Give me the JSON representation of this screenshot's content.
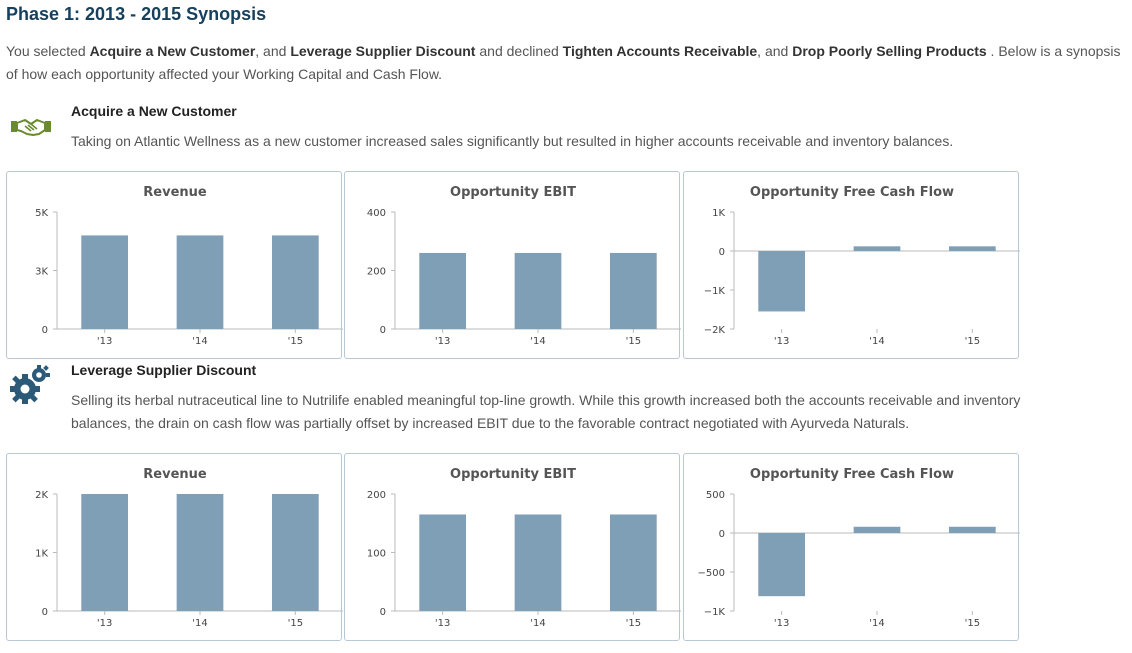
{
  "page": {
    "title": "Phase 1: 2013 - 2015 Synopsis",
    "intro": {
      "t1": "You selected ",
      "b1": "Acquire a New Customer",
      "t2": ", and ",
      "b2": "Leverage Supplier Discount",
      "t3": " and declined ",
      "b3": "Tighten Accounts Receivable",
      "t4": ", and ",
      "b4": "Drop Poorly Selling Products",
      "t5": " . Below is a synopsis of how each opportunity affected your Working Capital and Cash Flow."
    }
  },
  "colors": {
    "bar": "#7f9fb6",
    "title": "#17405d",
    "handshake_icon": "#6a8a30",
    "gear_icon": "#2b5a78"
  },
  "opportunities": [
    {
      "icon": "handshake-icon",
      "title": "Acquire a New Customer",
      "description": "Taking on Atlantic Wellness as a new customer increased sales significantly but resulted in higher accounts receivable and inventory balances."
    },
    {
      "icon": "gear-icon",
      "title": "Leverage Supplier Discount",
      "description": "Selling its herbal nutraceutical line to Nutrilife enabled meaningful top-line growth. While this growth increased both the accounts receivable and inventory balances, the drain on cash flow was partially offset by increased EBIT due to the favorable contract negotiated with Ayurveda Naturals."
    }
  ],
  "chart_data": [
    {
      "type": "bar",
      "title": "Revenue",
      "categories": [
        "'13",
        "'14",
        "'15"
      ],
      "values": [
        4000,
        4000,
        4000
      ],
      "ylim": [
        0,
        5000
      ],
      "yticks": [
        0,
        2500,
        5000
      ],
      "ytick_labels": [
        "0",
        "3K",
        "5K"
      ]
    },
    {
      "type": "bar",
      "title": "Opportunity EBIT",
      "categories": [
        "'13",
        "'14",
        "'15"
      ],
      "values": [
        260,
        260,
        260
      ],
      "ylim": [
        0,
        400
      ],
      "yticks": [
        0,
        200,
        400
      ],
      "ytick_labels": [
        "0",
        "200",
        "400"
      ]
    },
    {
      "type": "bar",
      "title": "Opportunity Free Cash Flow",
      "categories": [
        "'13",
        "'14",
        "'15"
      ],
      "values": [
        -1550,
        120,
        120
      ],
      "ylim": [
        -2000,
        1000
      ],
      "yticks": [
        -2000,
        -1000,
        0,
        1000
      ],
      "ytick_labels": [
        "−2K",
        "−1K",
        "0",
        "1K"
      ]
    },
    {
      "type": "bar",
      "title": "Revenue",
      "categories": [
        "'13",
        "'14",
        "'15"
      ],
      "values": [
        2000,
        2000,
        2000
      ],
      "ylim": [
        0,
        2000
      ],
      "yticks": [
        0,
        1000,
        2000
      ],
      "ytick_labels": [
        "0",
        "1K",
        "2K"
      ]
    },
    {
      "type": "bar",
      "title": "Opportunity EBIT",
      "categories": [
        "'13",
        "'14",
        "'15"
      ],
      "values": [
        165,
        165,
        165
      ],
      "ylim": [
        0,
        200
      ],
      "yticks": [
        0,
        100,
        200
      ],
      "ytick_labels": [
        "0",
        "100",
        "200"
      ]
    },
    {
      "type": "bar",
      "title": "Opportunity Free Cash Flow",
      "categories": [
        "'13",
        "'14",
        "'15"
      ],
      "values": [
        -810,
        80,
        80
      ],
      "ylim": [
        -1000,
        500
      ],
      "yticks": [
        -1000,
        -500,
        0,
        500
      ],
      "ytick_labels": [
        "−1K",
        "−500",
        "0",
        "500"
      ]
    }
  ]
}
